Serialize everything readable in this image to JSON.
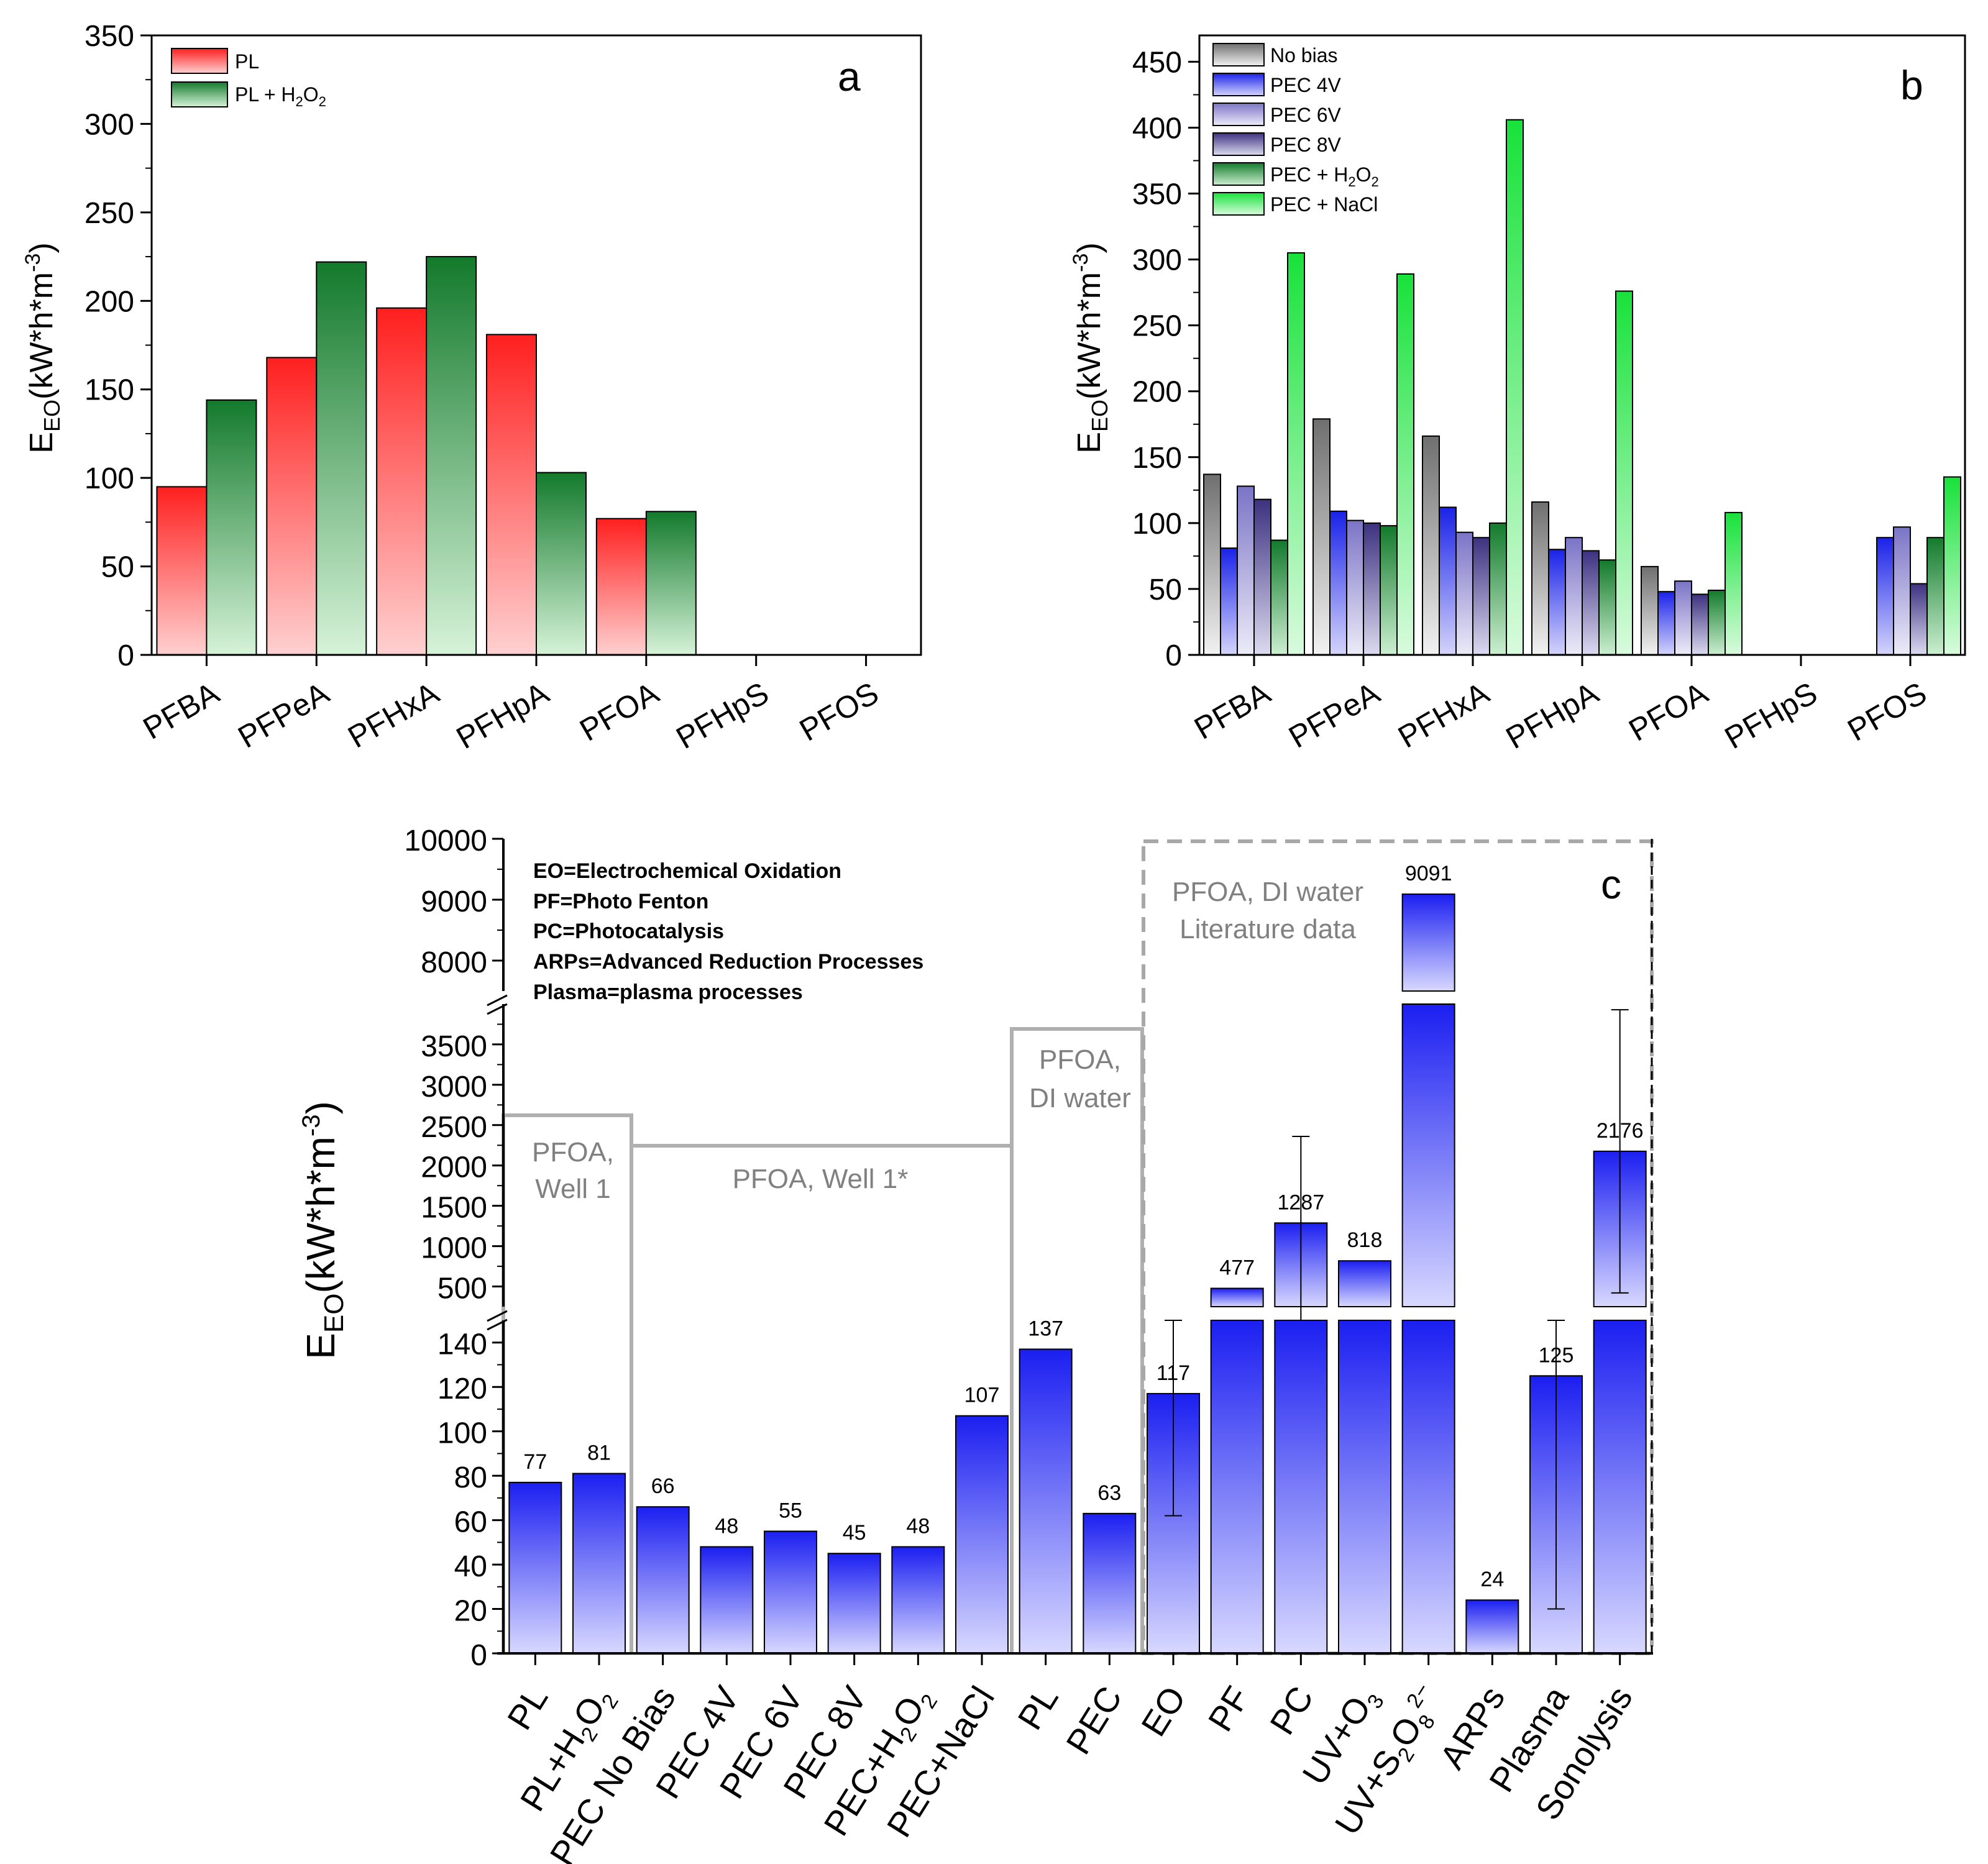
{
  "chart_data": [
    {
      "type": "bar",
      "panel": "a",
      "ylabel": "E_EO(kW*h*m^-3)",
      "ylim": [
        0,
        350
      ],
      "yticks": [
        0,
        50,
        100,
        150,
        200,
        250,
        300,
        350
      ],
      "categories": [
        "PFBA",
        "PFPeA",
        "PFHxA",
        "PFHpA",
        "PFOA",
        "PFHpS",
        "PFOS"
      ],
      "series": [
        {
          "name": "PL",
          "color": "#ff2a2a",
          "values": [
            95,
            168,
            196,
            181,
            77,
            null,
            null
          ]
        },
        {
          "name": "PL + H2O2",
          "color": "#1e8c3a",
          "values": [
            144,
            222,
            225,
            103,
            81,
            null,
            null
          ]
        }
      ],
      "legend": {
        "position": "top-left",
        "labels": [
          "PL",
          "PL + H2O2"
        ]
      }
    },
    {
      "type": "bar",
      "panel": "b",
      "ylabel": "E_EO(kW*h*m^-3)",
      "ylim": [
        0,
        470
      ],
      "yticks": [
        0,
        50,
        100,
        150,
        200,
        250,
        300,
        350,
        400,
        450
      ],
      "categories": [
        "PFBA",
        "PFPeA",
        "PFHxA",
        "PFHpA",
        "PFOA",
        "PFHpS",
        "PFOS"
      ],
      "series": [
        {
          "name": "No bias",
          "color": "#7f7f7f",
          "values": [
            137,
            179,
            166,
            116,
            67,
            null,
            null
          ]
        },
        {
          "name": "PEC 4V",
          "color": "#1f2ee6",
          "values": [
            81,
            109,
            112,
            80,
            48,
            null,
            89
          ]
        },
        {
          "name": "PEC 6V",
          "color": "#7f79c9",
          "values": [
            128,
            102,
            93,
            89,
            56,
            null,
            97
          ]
        },
        {
          "name": "PEC 8V",
          "color": "#4a3f8c",
          "values": [
            118,
            100,
            89,
            79,
            46,
            null,
            54
          ]
        },
        {
          "name": "PEC + H2O2",
          "color": "#1e8c3a",
          "values": [
            87,
            98,
            100,
            72,
            49,
            null,
            89
          ]
        },
        {
          "name": "PEC + NaCl",
          "color": "#22e640",
          "values": [
            305,
            289,
            406,
            276,
            108,
            null,
            135
          ]
        }
      ],
      "legend": {
        "position": "top-left",
        "labels": [
          "No bias",
          "PEC 4V",
          "PEC 6V",
          "PEC 8V",
          "PEC + H2O2",
          "PEC + NaCl"
        ]
      }
    },
    {
      "type": "bar",
      "panel": "c",
      "ylabel": "E_EO(kW*h*m^-3)",
      "broken_axis": true,
      "segments": [
        {
          "range": [
            0,
            150
          ],
          "ticks": [
            0,
            20,
            40,
            60,
            80,
            100,
            120,
            140
          ]
        },
        {
          "range": [
            250,
            4000
          ],
          "ticks": [
            500,
            1000,
            1500,
            2000,
            2500,
            3000,
            3500
          ]
        },
        {
          "range": [
            7500,
            10000
          ],
          "ticks": [
            8000,
            9000,
            10000
          ]
        }
      ],
      "categories": [
        "PL",
        "PL+H2O2",
        "PEC No Bias",
        "PEC 4V",
        "PEC 6V",
        "PEC 8V",
        "PEC+H2O2",
        "PEC+NaCl",
        "PL",
        "PEC",
        "EO",
        "PF",
        "PC",
        "UV+O3",
        "UV+S2O8 2−",
        "ARPs",
        "Plasma",
        "Sonolysis"
      ],
      "values": [
        77,
        81,
        66,
        48,
        55,
        45,
        48,
        107,
        137,
        63,
        117,
        477,
        1287,
        818,
        9091,
        24,
        125,
        2176
      ],
      "value_labels": [
        "77",
        "81",
        "66",
        "48",
        "55",
        "45",
        "48",
        "107",
        "137",
        "63",
        "117",
        "477",
        "1287",
        "818",
        "9091",
        "24",
        "125",
        "2176"
      ],
      "error_bars": [
        {
          "category": "EO",
          "low": 62,
          "high": 172
        },
        {
          "category": "PC",
          "low": 200,
          "high": 2360
        },
        {
          "category": "Plasma",
          "low": 20,
          "high": 210
        },
        {
          "category": "Sonolysis",
          "low": 420,
          "high": 3930
        }
      ],
      "groups": [
        "PFOA, Well 1",
        "PFOA, Well 1*",
        "PFOA, DI water",
        "PFOA, DI water Literature data"
      ],
      "notes": [
        "EO=Electrochemical Oxidation",
        "PF=Photo Fenton",
        "PC=Photocatalysis",
        "ARPs=Advanced Reduction Processes",
        "Plasma=plasma processes"
      ]
    }
  ],
  "text": {
    "panel_a_letter": "a",
    "panel_b_letter": "b",
    "panel_c_letter": "c",
    "axis_E": "E",
    "axis_EO_sub": "EO",
    "axis_unit_prefix": "(kW*h*m",
    "axis_unit_exp": "-3",
    "axis_unit_suffix": ")",
    "region_well1_line1": "PFOA,",
    "region_well1_line2": "Well 1",
    "region_well1star": "PFOA, Well 1*",
    "region_di_line1": "PFOA,",
    "region_di_line2": "DI water",
    "region_lit_line1": "PFOA, DI water",
    "region_lit_line2": "Literature data"
  }
}
